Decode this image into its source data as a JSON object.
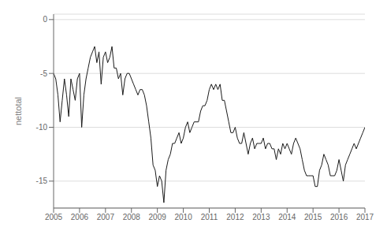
{
  "chart_data": {
    "type": "line",
    "ylabel": "nettotal",
    "xlim": [
      2005.0,
      2017.0
    ],
    "ylim": [
      -17.5,
      0.5
    ],
    "xticks": [
      2005,
      2006,
      2007,
      2008,
      2009,
      2010,
      2011,
      2012,
      2013,
      2014,
      2015,
      2016,
      2017
    ],
    "yticks": [
      0,
      -5,
      -10,
      -15
    ],
    "grid": "y",
    "color": "#1a1a1a",
    "x": [
      2005.0,
      2005.083,
      2005.167,
      2005.25,
      2005.333,
      2005.417,
      2005.5,
      2005.583,
      2005.667,
      2005.75,
      2005.833,
      2005.917,
      2006.0,
      2006.083,
      2006.167,
      2006.25,
      2006.333,
      2006.417,
      2006.5,
      2006.583,
      2006.667,
      2006.75,
      2006.833,
      2006.917,
      2007.0,
      2007.083,
      2007.167,
      2007.25,
      2007.333,
      2007.417,
      2007.5,
      2007.583,
      2007.667,
      2007.75,
      2007.833,
      2007.917,
      2008.0,
      2008.083,
      2008.167,
      2008.25,
      2008.333,
      2008.417,
      2008.5,
      2008.583,
      2008.667,
      2008.75,
      2008.833,
      2008.917,
      2009.0,
      2009.083,
      2009.167,
      2009.25,
      2009.333,
      2009.417,
      2009.5,
      2009.583,
      2009.667,
      2009.75,
      2009.833,
      2009.917,
      2010.0,
      2010.083,
      2010.167,
      2010.25,
      2010.333,
      2010.417,
      2010.5,
      2010.583,
      2010.667,
      2010.75,
      2010.833,
      2010.917,
      2011.0,
      2011.083,
      2011.167,
      2011.25,
      2011.333,
      2011.417,
      2011.5,
      2011.583,
      2011.667,
      2011.75,
      2011.833,
      2011.917,
      2012.0,
      2012.083,
      2012.167,
      2012.25,
      2012.333,
      2012.417,
      2012.5,
      2012.583,
      2012.667,
      2012.75,
      2012.833,
      2012.917,
      2013.0,
      2013.083,
      2013.167,
      2013.25,
      2013.333,
      2013.417,
      2013.5,
      2013.583,
      2013.667,
      2013.75,
      2013.833,
      2013.917,
      2014.0,
      2014.083,
      2014.167,
      2014.25,
      2014.333,
      2014.417,
      2014.5,
      2014.583,
      2014.667,
      2014.75,
      2014.833,
      2014.917,
      2015.0,
      2015.083,
      2015.167,
      2015.25,
      2015.333,
      2015.417,
      2015.5,
      2015.583,
      2015.667,
      2015.75,
      2015.833,
      2015.917,
      2016.0,
      2016.083,
      2016.167,
      2016.25,
      2016.333,
      2016.417,
      2016.5,
      2016.583,
      2016.667,
      2016.75,
      2016.833,
      2016.917,
      2017.0
    ],
    "values": [
      -5.0,
      -5.5,
      -7.0,
      -9.5,
      -7.5,
      -5.5,
      -7.0,
      -9.0,
      -5.5,
      -6.5,
      -7.5,
      -5.5,
      -5.0,
      -10.0,
      -7.0,
      -5.5,
      -4.5,
      -3.5,
      -3.0,
      -2.5,
      -4.0,
      -3.0,
      -6.0,
      -3.5,
      -3.0,
      -4.0,
      -3.5,
      -2.5,
      -4.5,
      -4.5,
      -5.5,
      -5.0,
      -7.0,
      -5.5,
      -5.0,
      -5.0,
      -5.5,
      -6.0,
      -6.5,
      -7.0,
      -6.5,
      -6.5,
      -7.0,
      -8.0,
      -9.5,
      -11.0,
      -13.5,
      -14.0,
      -15.5,
      -14.5,
      -15.0,
      -17.0,
      -14.0,
      -13.0,
      -12.5,
      -11.5,
      -11.5,
      -11.0,
      -10.5,
      -11.5,
      -11.0,
      -10.0,
      -9.5,
      -10.5,
      -10.0,
      -9.5,
      -9.5,
      -9.5,
      -8.5,
      -8.0,
      -8.0,
      -7.5,
      -6.5,
      -6.0,
      -6.5,
      -6.0,
      -6.5,
      -6.0,
      -7.5,
      -7.5,
      -8.5,
      -9.5,
      -10.5,
      -10.5,
      -10.0,
      -11.0,
      -11.5,
      -11.5,
      -10.5,
      -11.5,
      -12.5,
      -11.5,
      -11.0,
      -12.0,
      -11.5,
      -11.5,
      -11.5,
      -11.0,
      -12.0,
      -11.5,
      -11.5,
      -12.0,
      -12.0,
      -13.0,
      -12.0,
      -12.5,
      -11.5,
      -12.0,
      -11.5,
      -12.0,
      -12.5,
      -11.5,
      -11.0,
      -11.5,
      -12.0,
      -13.0,
      -14.0,
      -14.5,
      -14.5,
      -14.5,
      -14.5,
      -15.5,
      -15.5,
      -14.0,
      -13.5,
      -12.5,
      -13.0,
      -13.5,
      -14.5,
      -14.5,
      -14.5,
      -14.0,
      -13.0,
      -14.0,
      -15.0,
      -13.5,
      -13.0,
      -12.5,
      -12.0,
      -11.5,
      -12.0,
      -11.5,
      -11.0,
      -10.5,
      -10.0
    ]
  }
}
